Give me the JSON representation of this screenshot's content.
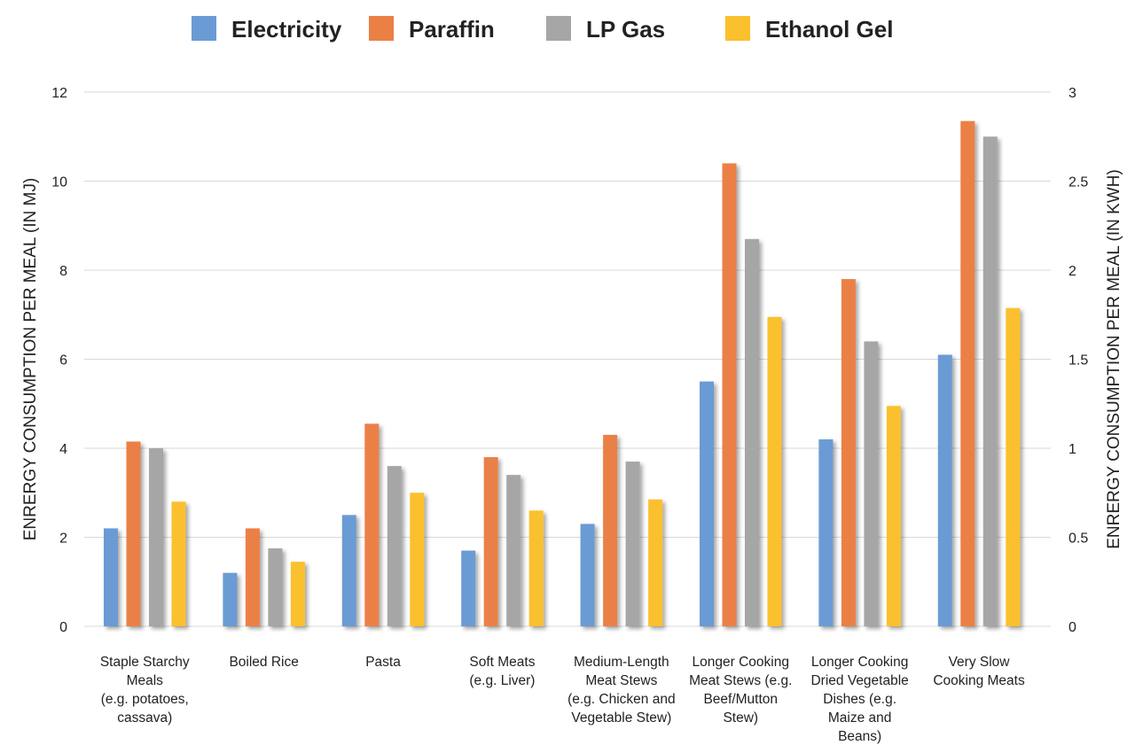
{
  "chart_data": {
    "type": "bar",
    "title": "",
    "categories": [
      [
        "Staple Starchy",
        "Meals",
        "(e.g. potatoes,",
        "cassava)"
      ],
      [
        "Boiled Rice"
      ],
      [
        "Pasta"
      ],
      [
        "Soft Meats",
        "(e.g. Liver)"
      ],
      [
        "Medium-Length",
        "Meat Stews",
        "(e.g. Chicken and",
        "Vegetable Stew)"
      ],
      [
        "Longer Cooking",
        "Meat Stews (e.g.",
        "Beef/Mutton",
        "Stew)"
      ],
      [
        "Longer Cooking",
        "Dried Vegetable",
        "Dishes (e.g.",
        "Maize and",
        "Beans)"
      ],
      [
        "Very Slow",
        "Cooking Meats"
      ]
    ],
    "series": [
      {
        "name": "Electricity",
        "color": "#6a9bd4",
        "values": [
          2.2,
          1.2,
          2.5,
          1.7,
          2.3,
          5.5,
          4.2,
          6.1
        ]
      },
      {
        "name": "Paraffin",
        "color": "#eb8047",
        "values": [
          4.15,
          2.2,
          4.55,
          3.8,
          4.3,
          10.4,
          7.8,
          11.35
        ]
      },
      {
        "name": "LP Gas",
        "color": "#a6a6a6",
        "values": [
          4.0,
          1.75,
          3.6,
          3.4,
          3.7,
          8.7,
          6.4,
          11.0
        ]
      },
      {
        "name": "Ethanol Gel",
        "color": "#fbc02d",
        "values": [
          2.8,
          1.45,
          3.0,
          2.6,
          2.85,
          6.95,
          4.95,
          7.15
        ]
      }
    ],
    "ylabel": "ENRERGY CONSUMPTION PER MEAL (IN MJ)",
    "y2label": "ENRERGY CONSUMPTION PER MEAL (IN KWH)",
    "ylim": [
      0,
      12
    ],
    "yticks": [
      "0",
      "2",
      "4",
      "6",
      "8",
      "10",
      "12"
    ],
    "y2lim": [
      0,
      3
    ],
    "y2ticks": [
      "0",
      "0.5",
      "1",
      "1.5",
      "2",
      "2.5",
      "3"
    ],
    "grid": true,
    "legend_position": "top"
  }
}
